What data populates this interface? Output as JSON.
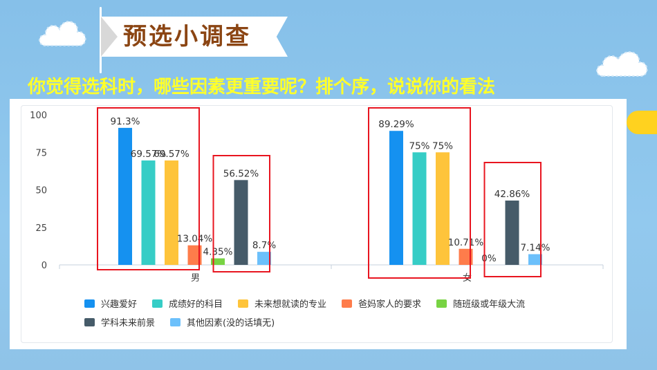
{
  "header": {
    "title": "预选小调查",
    "question": "你觉得选科时，哪些因素更重要呢？排个序，说说你的看法"
  },
  "decor": {
    "left_cloud": "cloud-icon",
    "right_cloud": "cloud-icon",
    "sun": "sun-icon",
    "banner_color": "#ffffff",
    "title_color": "#8b4513",
    "question_color": "#ffff2a",
    "highlight_color": "#e8141f"
  },
  "chart_data": {
    "type": "bar",
    "categories": [
      "男",
      "女"
    ],
    "series": [
      {
        "name": "兴趣爱好",
        "color": "#1591f0",
        "values": [
          91.3,
          89.29
        ],
        "labels": [
          "91.3%",
          "89.29%"
        ]
      },
      {
        "name": "成绩好的科目",
        "color": "#36cdc6",
        "values": [
          69.57,
          75
        ],
        "labels": [
          "69.57%",
          "75%"
        ]
      },
      {
        "name": "未来想就读的专业",
        "color": "#fec43b",
        "values": [
          69.57,
          75
        ],
        "labels": [
          "69.57%",
          "75%"
        ]
      },
      {
        "name": "爸妈家人的要求",
        "color": "#fe7c4b",
        "values": [
          13.04,
          10.71
        ],
        "labels": [
          "13.04%",
          "10.71%"
        ]
      },
      {
        "name": "随班级或年级大流",
        "color": "#78d343",
        "values": [
          4.35,
          0
        ],
        "labels": [
          "4.35%",
          "0%"
        ]
      },
      {
        "name": "学科未来前景",
        "color": "#465b69",
        "values": [
          56.52,
          42.86
        ],
        "labels": [
          "56.52%",
          "42.86%"
        ]
      },
      {
        "name": "其他因素(没的话填无)",
        "color": "#6cc0fb",
        "values": [
          8.7,
          7.14
        ],
        "labels": [
          "8.7%",
          "7.14%"
        ]
      }
    ],
    "yticks": [
      "100",
      "75",
      "50",
      "25",
      "0"
    ],
    "ylim": [
      0,
      100
    ],
    "grid": false,
    "legend_position": "bottom"
  }
}
